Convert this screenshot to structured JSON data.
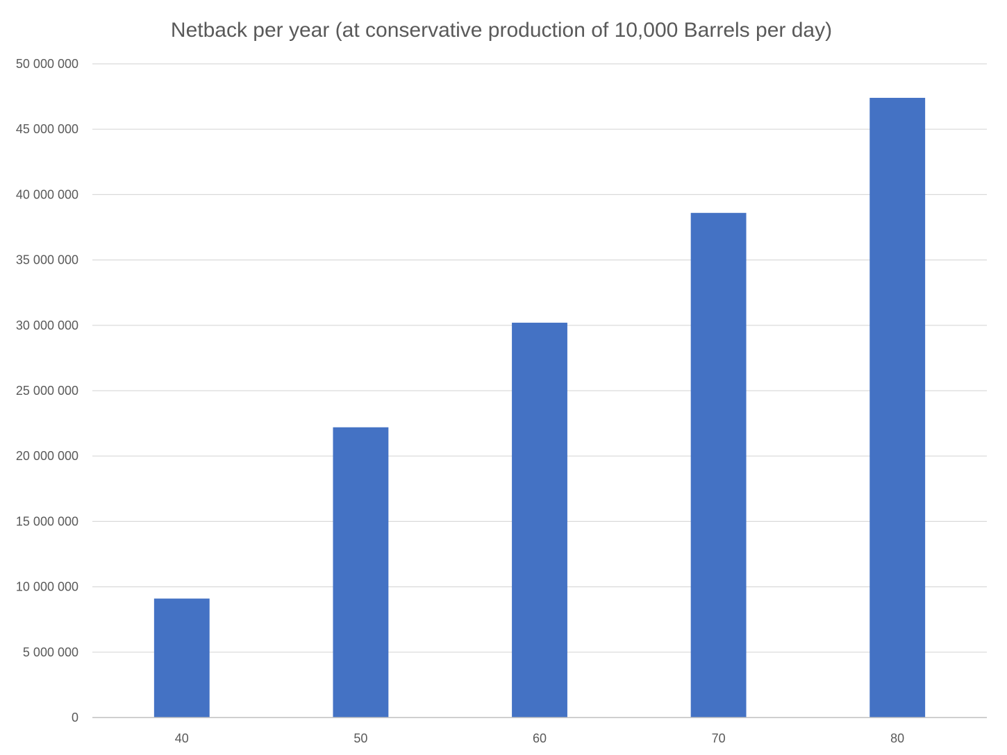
{
  "chart_data": {
    "type": "bar",
    "title": "Netback per year (at conservative production of 10,000 Barrels per day)",
    "xlabel": "",
    "ylabel": "",
    "categories": [
      "40",
      "50",
      "60",
      "70",
      "80"
    ],
    "values": [
      9100000,
      22200000,
      30200000,
      38600000,
      47400000
    ],
    "ylim": [
      0,
      50000000
    ],
    "yticks": [
      0,
      5000000,
      10000000,
      15000000,
      20000000,
      25000000,
      30000000,
      35000000,
      40000000,
      45000000,
      50000000
    ],
    "ytick_labels": [
      "0",
      "5 000 000",
      "10 000 000",
      "15 000 000",
      "20 000 000",
      "25 000 000",
      "30 000 000",
      "35 000 000",
      "40 000 000",
      "45 000 000",
      "50 000 000"
    ],
    "grid": true,
    "legend": "none",
    "colors": {
      "bar": "#4472c4",
      "grid": "#d9d9d9",
      "text": "#595959"
    }
  }
}
